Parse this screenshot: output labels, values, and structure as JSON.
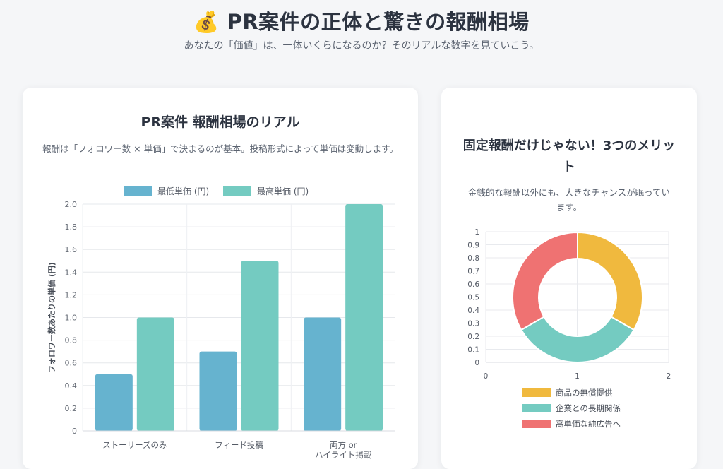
{
  "header": {
    "icon": "💰",
    "title": "PR案件の正体と驚きの報酬相場",
    "subtitle": "あなたの「価値」は、一体いくらになるのか？そのリアルな数字を見ていこう。"
  },
  "left_card": {
    "title": "PR案件 報酬相場のリアル",
    "description": "報酬は「フォロワー数 × 単価」で決まるのが基本。投稿形式によって単価は変動します。"
  },
  "right_card": {
    "title": "固定報酬だけじゃない！3つのメリット",
    "description": "金銭的な報酬以外にも、大きなチャンスが眠っています。"
  },
  "chart_data": [
    {
      "type": "bar",
      "categories": [
        "ストーリーズのみ",
        "フィード投稿",
        "両方 or ハイライト掲載"
      ],
      "category_lines": [
        [
          "ストーリーズのみ"
        ],
        [
          "フィード投稿"
        ],
        [
          "両方 or",
          "ハイライト掲載"
        ]
      ],
      "series": [
        {
          "name": "最低単価 (円)",
          "values": [
            0.5,
            0.7,
            1.0
          ],
          "color": "#66b3cf"
        },
        {
          "name": "最高単価 (円)",
          "values": [
            1.0,
            1.5,
            2.0
          ],
          "color": "#74cbc1"
        }
      ],
      "ylabel": "フォロワー数あたりの単価 (円)",
      "ylim": [
        0,
        2.0
      ],
      "yticks": [
        "0",
        "0.2",
        "0.4",
        "0.6",
        "0.8",
        "1.0",
        "1.2",
        "1.4",
        "1.6",
        "1.8",
        "2.0"
      ],
      "grid": true,
      "legend_position": "top"
    },
    {
      "type": "pie",
      "subtype": "doughnut",
      "labels": [
        "商品の無償提供",
        "企業との長期関係",
        "高単価な純広告へ"
      ],
      "values": [
        1,
        1,
        1
      ],
      "colors": [
        "#f0b93e",
        "#74cbc1",
        "#ef7272"
      ],
      "xticks": [
        "0",
        "1",
        "2"
      ],
      "yticks": [
        "0",
        "0.1",
        "0.2",
        "0.3",
        "0.4",
        "0.5",
        "0.6",
        "0.7",
        "0.8",
        "0.9",
        "1"
      ],
      "grid": true,
      "legend_position": "bottom"
    }
  ]
}
